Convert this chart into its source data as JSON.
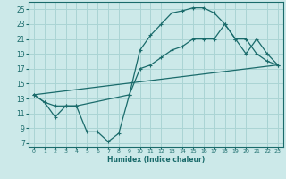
{
  "xlabel": "Humidex (Indice chaleur)",
  "background_color": "#cce9e9",
  "grid_color": "#aad4d4",
  "line_color": "#1a6b6b",
  "xlim": [
    -0.5,
    23.5
  ],
  "ylim": [
    6.5,
    26.0
  ],
  "xticks": [
    0,
    1,
    2,
    3,
    4,
    5,
    6,
    7,
    8,
    9,
    10,
    11,
    12,
    13,
    14,
    15,
    16,
    17,
    18,
    19,
    20,
    21,
    22,
    23
  ],
  "yticks": [
    7,
    9,
    11,
    13,
    15,
    17,
    19,
    21,
    23,
    25
  ],
  "line1_x": [
    0,
    1,
    2,
    3,
    4,
    5,
    6,
    7,
    8,
    9,
    10,
    11,
    12,
    13,
    14,
    15,
    16,
    17,
    18,
    19,
    20,
    21,
    22,
    23
  ],
  "line1_y": [
    13.5,
    12.5,
    10.5,
    12.0,
    12.0,
    8.5,
    8.5,
    7.2,
    8.3,
    13.5,
    19.5,
    21.5,
    23.0,
    24.5,
    24.8,
    25.2,
    25.2,
    24.5,
    23.0,
    21.0,
    21.0,
    19.0,
    18.0,
    17.5
  ],
  "line2_x": [
    0,
    1,
    2,
    3,
    4,
    9,
    10,
    11,
    12,
    13,
    14,
    15,
    16,
    17,
    18,
    19,
    20,
    21,
    22,
    23
  ],
  "line2_y": [
    13.5,
    12.5,
    12.0,
    12.0,
    12.0,
    13.5,
    17.0,
    17.5,
    18.5,
    19.5,
    20.0,
    21.0,
    21.0,
    21.0,
    23.0,
    21.0,
    19.0,
    21.0,
    19.0,
    17.5
  ],
  "line3_x": [
    0,
    23
  ],
  "line3_y": [
    13.5,
    17.5
  ]
}
